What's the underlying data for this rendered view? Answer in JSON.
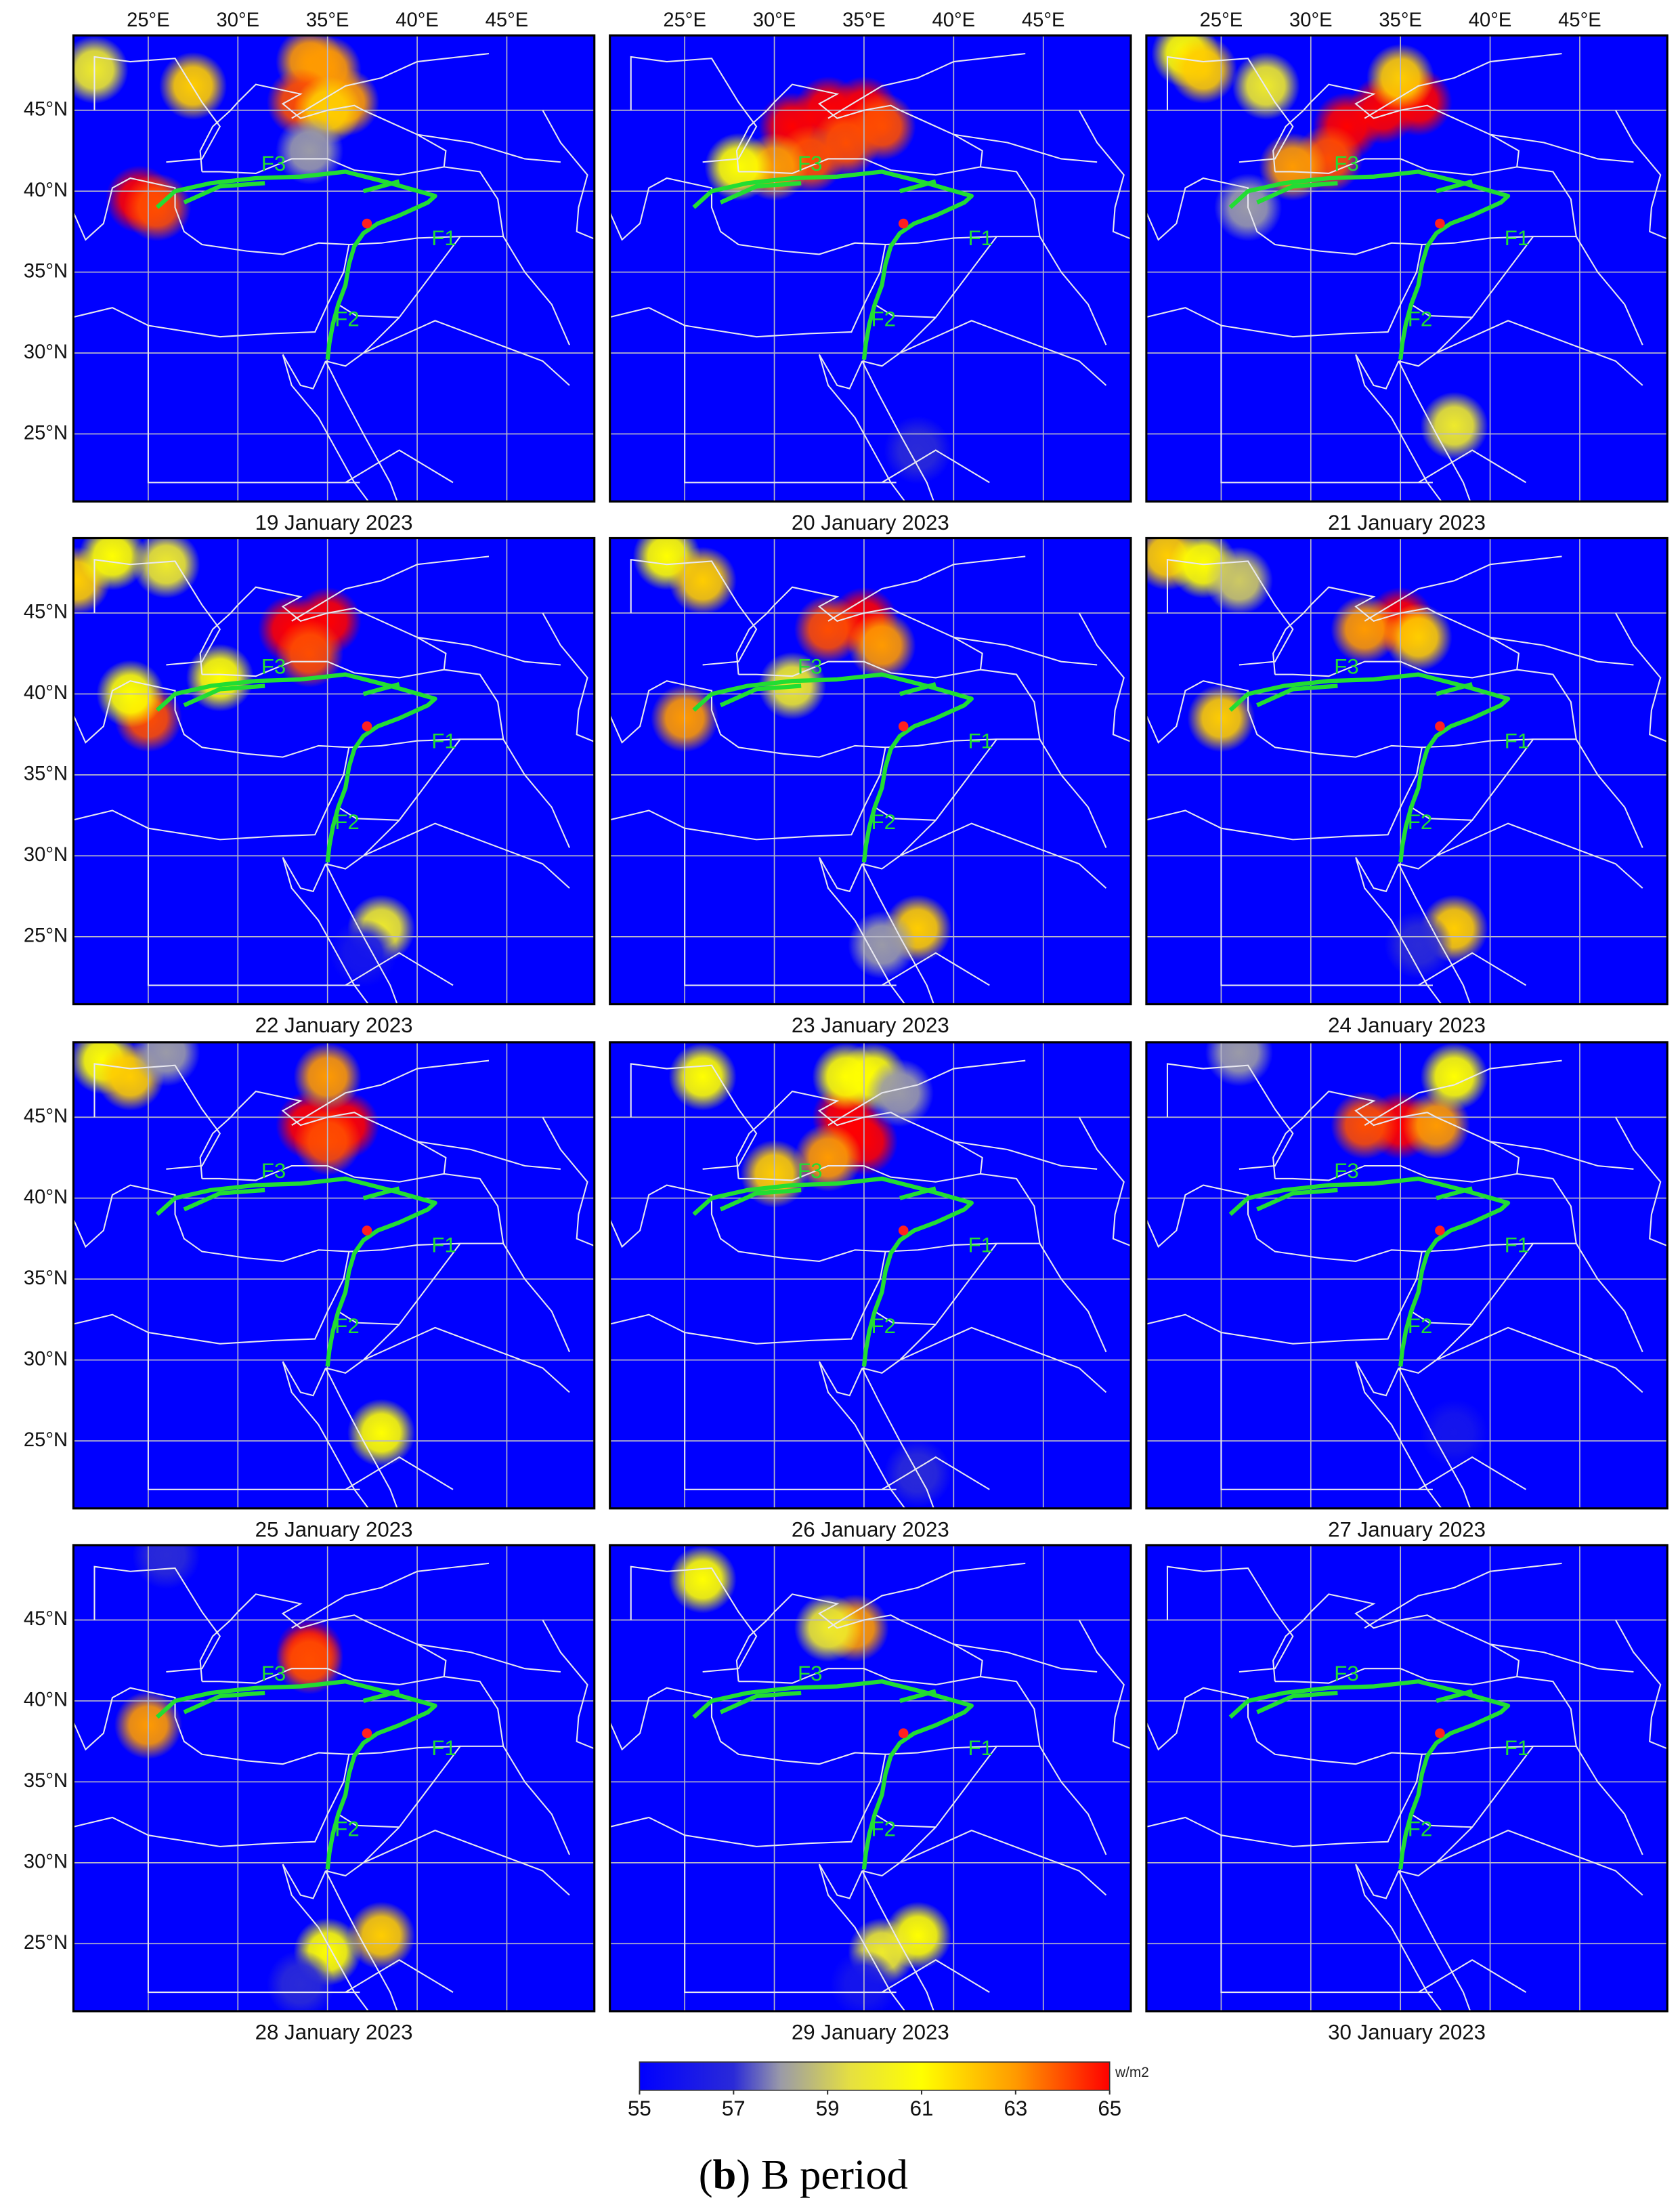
{
  "lon_ticks": [
    {
      "value": 25,
      "label": "25°E"
    },
    {
      "value": 30,
      "label": "30°E"
    },
    {
      "value": 35,
      "label": "35°E"
    },
    {
      "value": 40,
      "label": "40°E"
    },
    {
      "value": 45,
      "label": "45°E"
    }
  ],
  "lat_ticks": [
    {
      "value": 45,
      "label": "45°N"
    },
    {
      "value": 40,
      "label": "40°N"
    },
    {
      "value": 35,
      "label": "35°N"
    },
    {
      "value": 30,
      "label": "30°N"
    },
    {
      "value": 25,
      "label": "25°N"
    }
  ],
  "fault_labels": [
    "F1",
    "F2",
    "F3"
  ],
  "panels": [
    {
      "date": "19 January 2023",
      "hotspots": [
        [
          34,
          48,
          63
        ],
        [
          35,
          47.5,
          63
        ],
        [
          33.5,
          45.5,
          64
        ],
        [
          36,
          45.5,
          63
        ],
        [
          35,
          45,
          62
        ],
        [
          24.5,
          39.5,
          65
        ],
        [
          25.5,
          39,
          64
        ],
        [
          22,
          47.5,
          60
        ],
        [
          27.5,
          46.5,
          62
        ],
        [
          34,
          42.5,
          58
        ]
      ]
    },
    {
      "date": "20 January 2023",
      "hotspots": [
        [
          31,
          44,
          65
        ],
        [
          33,
          45,
          65
        ],
        [
          35,
          45,
          65
        ],
        [
          32,
          42,
          64
        ],
        [
          34,
          43,
          64
        ],
        [
          36,
          44,
          64
        ],
        [
          30,
          41.5,
          63
        ],
        [
          28,
          41.5,
          61
        ],
        [
          38,
          24,
          57
        ]
      ]
    },
    {
      "date": "21 January 2023",
      "hotspots": [
        [
          32,
          44,
          65
        ],
        [
          34,
          45,
          65
        ],
        [
          36,
          45.5,
          65
        ],
        [
          35,
          47,
          62
        ],
        [
          31,
          42,
          64
        ],
        [
          29,
          41.5,
          63
        ],
        [
          26.5,
          39,
          58
        ],
        [
          23,
          48.5,
          61
        ],
        [
          24,
          47.5,
          62
        ],
        [
          27.5,
          46.5,
          60
        ],
        [
          38,
          25.5,
          60
        ]
      ]
    },
    {
      "date": "22 January 2023",
      "hotspots": [
        [
          33,
          44,
          65
        ],
        [
          35,
          44.5,
          65
        ],
        [
          34,
          42.5,
          64
        ],
        [
          29,
          41,
          61
        ],
        [
          25,
          38.5,
          64
        ],
        [
          24,
          40,
          61
        ],
        [
          21,
          47,
          62
        ],
        [
          23,
          48.5,
          61
        ],
        [
          26,
          48,
          60
        ],
        [
          38,
          25.5,
          60
        ],
        [
          37,
          24,
          56
        ]
      ]
    },
    {
      "date": "23 January 2023",
      "hotspots": [
        [
          35,
          44.5,
          65
        ],
        [
          33,
          44,
          64
        ],
        [
          36,
          43,
          63
        ],
        [
          31,
          40.5,
          60
        ],
        [
          25,
          38.5,
          63
        ],
        [
          24,
          48.5,
          61
        ],
        [
          26,
          47,
          62
        ],
        [
          38,
          25.5,
          62
        ],
        [
          36,
          24.5,
          58
        ]
      ]
    },
    {
      "date": "24 January 2023",
      "hotspots": [
        [
          35,
          44.5,
          65
        ],
        [
          33,
          44,
          63
        ],
        [
          36,
          43.5,
          62
        ],
        [
          25,
          38.5,
          62
        ],
        [
          22,
          48.5,
          62
        ],
        [
          24,
          48,
          61
        ],
        [
          26,
          47,
          59
        ],
        [
          38,
          25.5,
          62
        ],
        [
          36,
          24.5,
          57
        ]
      ]
    },
    {
      "date": "25 January 2023",
      "hotspots": [
        [
          34,
          44.5,
          65
        ],
        [
          36,
          44.5,
          65
        ],
        [
          35,
          43.5,
          64
        ],
        [
          35,
          47.5,
          63
        ],
        [
          22.5,
          48.5,
          61
        ],
        [
          24,
          47.5,
          62
        ],
        [
          26,
          49,
          58
        ],
        [
          38,
          25.5,
          61
        ]
      ]
    },
    {
      "date": "26 January 2023",
      "hotspots": [
        [
          34,
          45,
          65
        ],
        [
          35,
          43.5,
          65
        ],
        [
          33,
          42.5,
          63
        ],
        [
          30,
          41.5,
          62
        ],
        [
          34,
          47.5,
          61
        ],
        [
          35.5,
          47.5,
          61
        ],
        [
          26,
          47.5,
          61
        ],
        [
          38,
          23,
          57
        ],
        [
          37,
          46.5,
          58
        ]
      ]
    },
    {
      "date": "27 January 2023",
      "hotspots": [
        [
          35,
          44.5,
          65
        ],
        [
          33,
          44.5,
          64
        ],
        [
          37,
          44.5,
          63
        ],
        [
          38,
          47.5,
          61
        ],
        [
          26,
          49,
          58
        ],
        [
          38,
          25.5,
          56
        ]
      ]
    },
    {
      "date": "28 January 2023",
      "hotspots": [
        [
          34,
          43,
          65
        ],
        [
          34,
          42.5,
          64
        ],
        [
          25,
          38.5,
          63
        ],
        [
          26,
          49,
          57
        ],
        [
          38,
          25.5,
          62
        ],
        [
          35,
          24.5,
          61
        ],
        [
          33.5,
          22.5,
          57
        ]
      ]
    },
    {
      "date": "29 January 2023",
      "hotspots": [
        [
          34.5,
          44.5,
          63
        ],
        [
          33,
          44.5,
          60
        ],
        [
          26,
          47.5,
          61
        ],
        [
          38,
          25.5,
          61
        ],
        [
          36,
          24.5,
          60
        ],
        [
          35,
          22.5,
          56
        ]
      ]
    },
    {
      "date": "30 January 2023",
      "hotspots": []
    }
  ],
  "colorbar": {
    "lim": [
      55,
      65
    ],
    "ticks": [
      55,
      57,
      59,
      61,
      63,
      65
    ],
    "unit": "w/m2",
    "colormap": [
      [
        55,
        "#0000ff"
      ],
      [
        57,
        "#2a2ad8"
      ],
      [
        58,
        "#9a9aa8"
      ],
      [
        59.5,
        "#e6e040"
      ],
      [
        61,
        "#ffff00"
      ],
      [
        63,
        "#ff9a00"
      ],
      [
        65,
        "#ff0000"
      ]
    ]
  },
  "caption": [
    "(",
    "b",
    ") B period"
  ]
}
